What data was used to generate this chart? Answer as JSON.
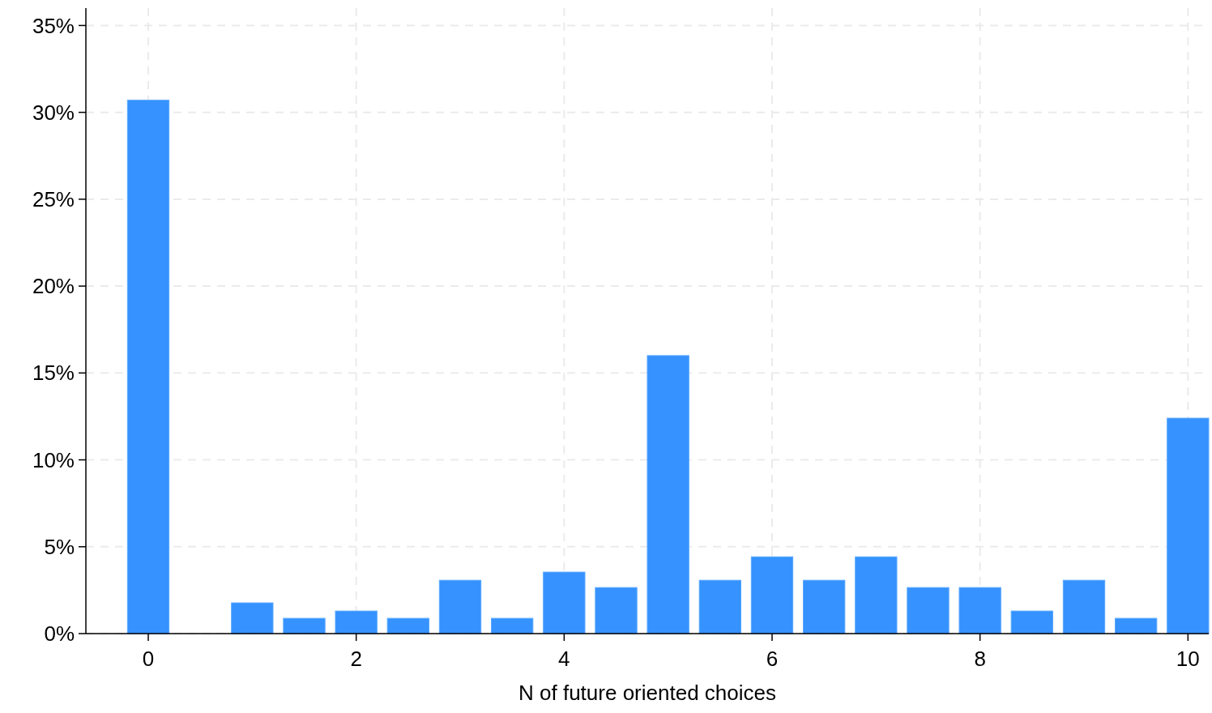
{
  "chart_data": {
    "type": "bar",
    "xlabel": "N of future oriented choices",
    "x": [
      0,
      0.5,
      1,
      1.5,
      2,
      2.5,
      3,
      3.5,
      4,
      4.5,
      5,
      5.5,
      6,
      6.5,
      7,
      7.5,
      8,
      8.5,
      9,
      9.5,
      10
    ],
    "values": [
      30.7,
      0,
      1.77,
      0.88,
      1.3,
      0.88,
      3.07,
      0.88,
      3.54,
      2.65,
      16.0,
      3.07,
      4.42,
      3.07,
      4.42,
      2.65,
      2.65,
      1.3,
      3.07,
      0.88,
      12.4
    ],
    "color": "#3592fe",
    "xlim": [
      -0.6,
      10.2
    ],
    "xticks": [
      0,
      2,
      4,
      6,
      8,
      10
    ],
    "ylim": [
      0,
      36
    ],
    "yticks": [
      {
        "value": 0,
        "label": "0%"
      },
      {
        "value": 5,
        "label": "5%"
      },
      {
        "value": 10,
        "label": "10%"
      },
      {
        "value": 15,
        "label": "15%"
      },
      {
        "value": 20,
        "label": "20%"
      },
      {
        "value": 25,
        "label": "25%"
      },
      {
        "value": 30,
        "label": "30%"
      },
      {
        "value": 35,
        "label": "35%"
      }
    ],
    "grid": true
  }
}
